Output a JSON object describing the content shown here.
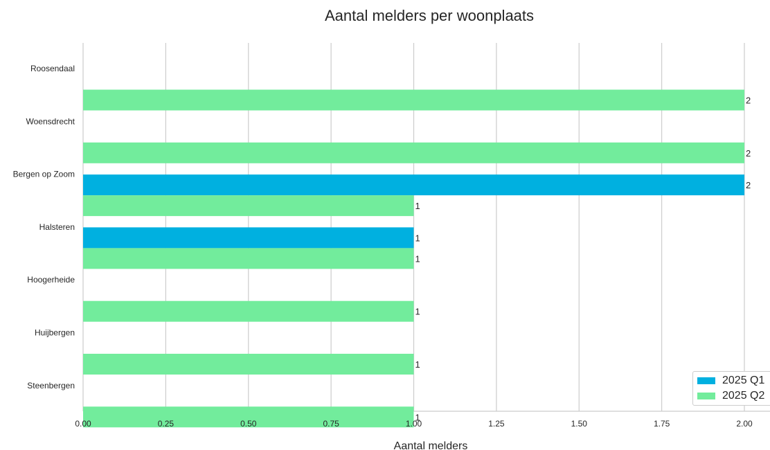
{
  "chart_data": {
    "type": "bar",
    "orientation": "horizontal",
    "title": "Aantal melders per woonplaats",
    "xlabel": "Aantal melders",
    "ylabel": "",
    "xlim": [
      0,
      2
    ],
    "xticks": [
      "0.00",
      "0.25",
      "0.50",
      "0.75",
      "1.00",
      "1.25",
      "1.50",
      "1.75",
      "2.00"
    ],
    "grid": "vertical",
    "legend_position": "bottom-right",
    "categories": [
      "Roosendaal",
      "Woensdrecht",
      "Bergen op Zoom",
      "Halsteren",
      "Hoogerheide",
      "Huijbergen",
      "Steenbergen"
    ],
    "series": [
      {
        "name": "2025 Q1",
        "color": "#00b0e0",
        "values": [
          null,
          null,
          2,
          1,
          null,
          null,
          null
        ]
      },
      {
        "name": "2025 Q2",
        "color": "#72ec9c",
        "values": [
          2,
          2,
          1,
          1,
          1,
          1,
          1
        ]
      }
    ]
  }
}
